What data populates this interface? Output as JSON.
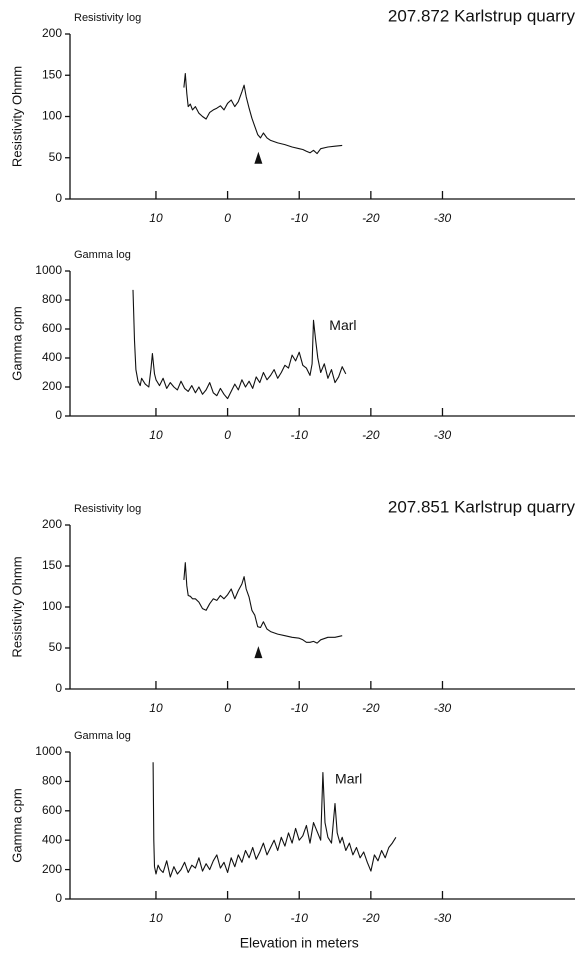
{
  "chart_data": [
    {
      "type": "line",
      "title": "207.872 Karlstrup quarry",
      "label": "Resistivity log",
      "ylabel": "Resistivity Ohmm",
      "color": "#111111",
      "xlim": [
        22,
        -48.5
      ],
      "xticks": [
        10,
        0,
        -10,
        -20,
        -30
      ],
      "ylim": [
        0,
        200
      ],
      "yticks": [
        0,
        50,
        100,
        150,
        200
      ],
      "x": [
        6.1,
        5.9,
        5.7,
        5.5,
        5.2,
        4.9,
        4.5,
        4.0,
        3.5,
        3.0,
        2.5,
        2.0,
        1.5,
        1.0,
        0.5,
        0,
        -0.5,
        -1.0,
        -1.5,
        -2.0,
        -2.3,
        -2.6,
        -3.0,
        -3.4,
        -3.8,
        -4.2,
        -4.6,
        -5.0,
        -5.5,
        -6,
        -7,
        -8,
        -9,
        -10,
        -10.5,
        -11,
        -11.5,
        -12,
        -12.5,
        -13,
        -14,
        -15,
        -16
      ],
      "values": [
        135,
        152,
        128,
        112,
        115,
        108,
        112,
        104,
        100,
        97,
        105,
        108,
        110,
        113,
        108,
        116,
        120,
        112,
        118,
        130,
        138,
        124,
        110,
        98,
        88,
        78,
        74,
        80,
        74,
        71,
        68,
        66,
        63,
        61,
        60,
        58,
        56,
        59,
        55,
        61,
        63,
        64,
        65
      ],
      "markers": [
        {
          "x": -4.3,
          "y": 50
        }
      ]
    },
    {
      "type": "line",
      "label": "Gamma log",
      "ylabel": "Gamma cpm",
      "color": "#111111",
      "xlim": [
        22,
        -48.5
      ],
      "xticks": [
        10,
        0,
        -10,
        -20,
        -30
      ],
      "ylim": [
        0,
        1000
      ],
      "yticks": [
        0,
        200,
        400,
        600,
        800,
        1000
      ],
      "x": [
        13.2,
        13.0,
        12.8,
        12.5,
        12.2,
        12.0,
        11.5,
        11.0,
        10.7,
        10.5,
        10.2,
        10,
        9.5,
        9,
        8.5,
        8,
        7.5,
        7,
        6.5,
        6,
        5.5,
        5,
        4.5,
        4,
        3.5,
        3,
        2.5,
        2,
        1.5,
        1,
        0.5,
        0,
        -0.5,
        -1,
        -1.5,
        -2,
        -2.5,
        -3,
        -3.5,
        -4,
        -4.5,
        -5,
        -5.5,
        -6,
        -6.5,
        -7,
        -7.5,
        -8,
        -8.5,
        -9,
        -9.5,
        -10,
        -10.5,
        -11,
        -11.5,
        -11.8,
        -12,
        -12.3,
        -12.6,
        -13,
        -13.5,
        -14,
        -14.5,
        -15,
        -15.5,
        -16,
        -16.5
      ],
      "values": [
        870,
        520,
        320,
        240,
        210,
        260,
        220,
        200,
        320,
        430,
        290,
        250,
        210,
        260,
        190,
        230,
        200,
        180,
        240,
        190,
        170,
        210,
        160,
        200,
        150,
        180,
        230,
        160,
        140,
        190,
        150,
        120,
        170,
        220,
        180,
        250,
        200,
        240,
        190,
        270,
        230,
        300,
        250,
        280,
        320,
        260,
        300,
        350,
        330,
        420,
        380,
        440,
        350,
        330,
        280,
        360,
        660,
        520,
        400,
        300,
        360,
        260,
        320,
        230,
        270,
        340,
        290
      ],
      "annotations": [
        {
          "text": "Marl",
          "x": -14.2,
          "y": 620
        }
      ]
    },
    {
      "type": "line",
      "title": "207.851 Karlstrup quarry",
      "label": "Resistivity log",
      "ylabel": "Resistivity Ohmm",
      "color": "#111111",
      "xlim": [
        22,
        -48.5
      ],
      "xticks": [
        10,
        0,
        -10,
        -20,
        -30
      ],
      "ylim": [
        0,
        200
      ],
      "yticks": [
        0,
        50,
        100,
        150,
        200
      ],
      "x": [
        6.1,
        5.9,
        5.7,
        5.5,
        5.2,
        4.9,
        4.5,
        4.0,
        3.5,
        3.0,
        2.5,
        2.0,
        1.5,
        1.0,
        0.5,
        0,
        -0.5,
        -1.0,
        -1.5,
        -2.0,
        -2.3,
        -2.6,
        -3.0,
        -3.4,
        -3.8,
        -4.2,
        -4.6,
        -5.0,
        -5.5,
        -6,
        -7,
        -8,
        -9,
        -10,
        -10.5,
        -11,
        -11.5,
        -12,
        -12.5,
        -13,
        -14,
        -15,
        -16
      ],
      "values": [
        133,
        154,
        126,
        114,
        113,
        110,
        110,
        106,
        98,
        96,
        104,
        110,
        108,
        114,
        110,
        115,
        122,
        110,
        120,
        128,
        137,
        122,
        112,
        96,
        90,
        76,
        75,
        82,
        73,
        70,
        67,
        65,
        63,
        62,
        60,
        57,
        57,
        58,
        56,
        60,
        63,
        63,
        65
      ],
      "markers": [
        {
          "x": -4.3,
          "y": 45
        }
      ]
    },
    {
      "type": "line",
      "label": "Gamma log",
      "ylabel": "Gamma cpm",
      "xlabel": "Elevation in meters",
      "color": "#111111",
      "xlim": [
        22,
        -48.5
      ],
      "xticks": [
        10,
        0,
        -10,
        -20,
        -30
      ],
      "ylim": [
        0,
        1000
      ],
      "yticks": [
        0,
        200,
        400,
        600,
        800,
        1000
      ],
      "x": [
        10.4,
        10.3,
        10.2,
        10.0,
        9.7,
        9.4,
        9,
        8.5,
        8,
        7.5,
        7,
        6.5,
        6,
        5.5,
        5,
        4.5,
        4,
        3.5,
        3,
        2.5,
        2,
        1.5,
        1,
        0.5,
        0,
        -0.5,
        -1,
        -1.5,
        -2,
        -2.5,
        -3,
        -3.5,
        -4,
        -4.5,
        -5,
        -5.5,
        -6,
        -6.5,
        -7,
        -7.5,
        -8,
        -8.5,
        -9,
        -9.5,
        -10,
        -10.5,
        -11,
        -11.5,
        -12,
        -12.5,
        -13,
        -13.3,
        -13.6,
        -14,
        -14.5,
        -15,
        -15.3,
        -15.7,
        -16,
        -16.5,
        -17,
        -17.5,
        -18,
        -18.5,
        -19,
        -19.5,
        -20,
        -20.5,
        -21,
        -21.5,
        -22,
        -22.5,
        -23,
        -23.5
      ],
      "values": [
        930,
        400,
        220,
        170,
        230,
        200,
        180,
        260,
        150,
        220,
        170,
        200,
        250,
        180,
        230,
        210,
        280,
        190,
        240,
        200,
        260,
        300,
        210,
        250,
        180,
        280,
        220,
        300,
        250,
        330,
        280,
        350,
        270,
        320,
        380,
        300,
        350,
        400,
        330,
        420,
        360,
        450,
        380,
        480,
        400,
        430,
        500,
        380,
        520,
        460,
        400,
        860,
        520,
        420,
        380,
        650,
        450,
        380,
        420,
        330,
        380,
        300,
        350,
        280,
        320,
        250,
        190,
        300,
        260,
        330,
        280,
        350,
        380,
        420
      ],
      "annotations": [
        {
          "text": "Marl",
          "x": -15,
          "y": 810
        }
      ]
    }
  ]
}
